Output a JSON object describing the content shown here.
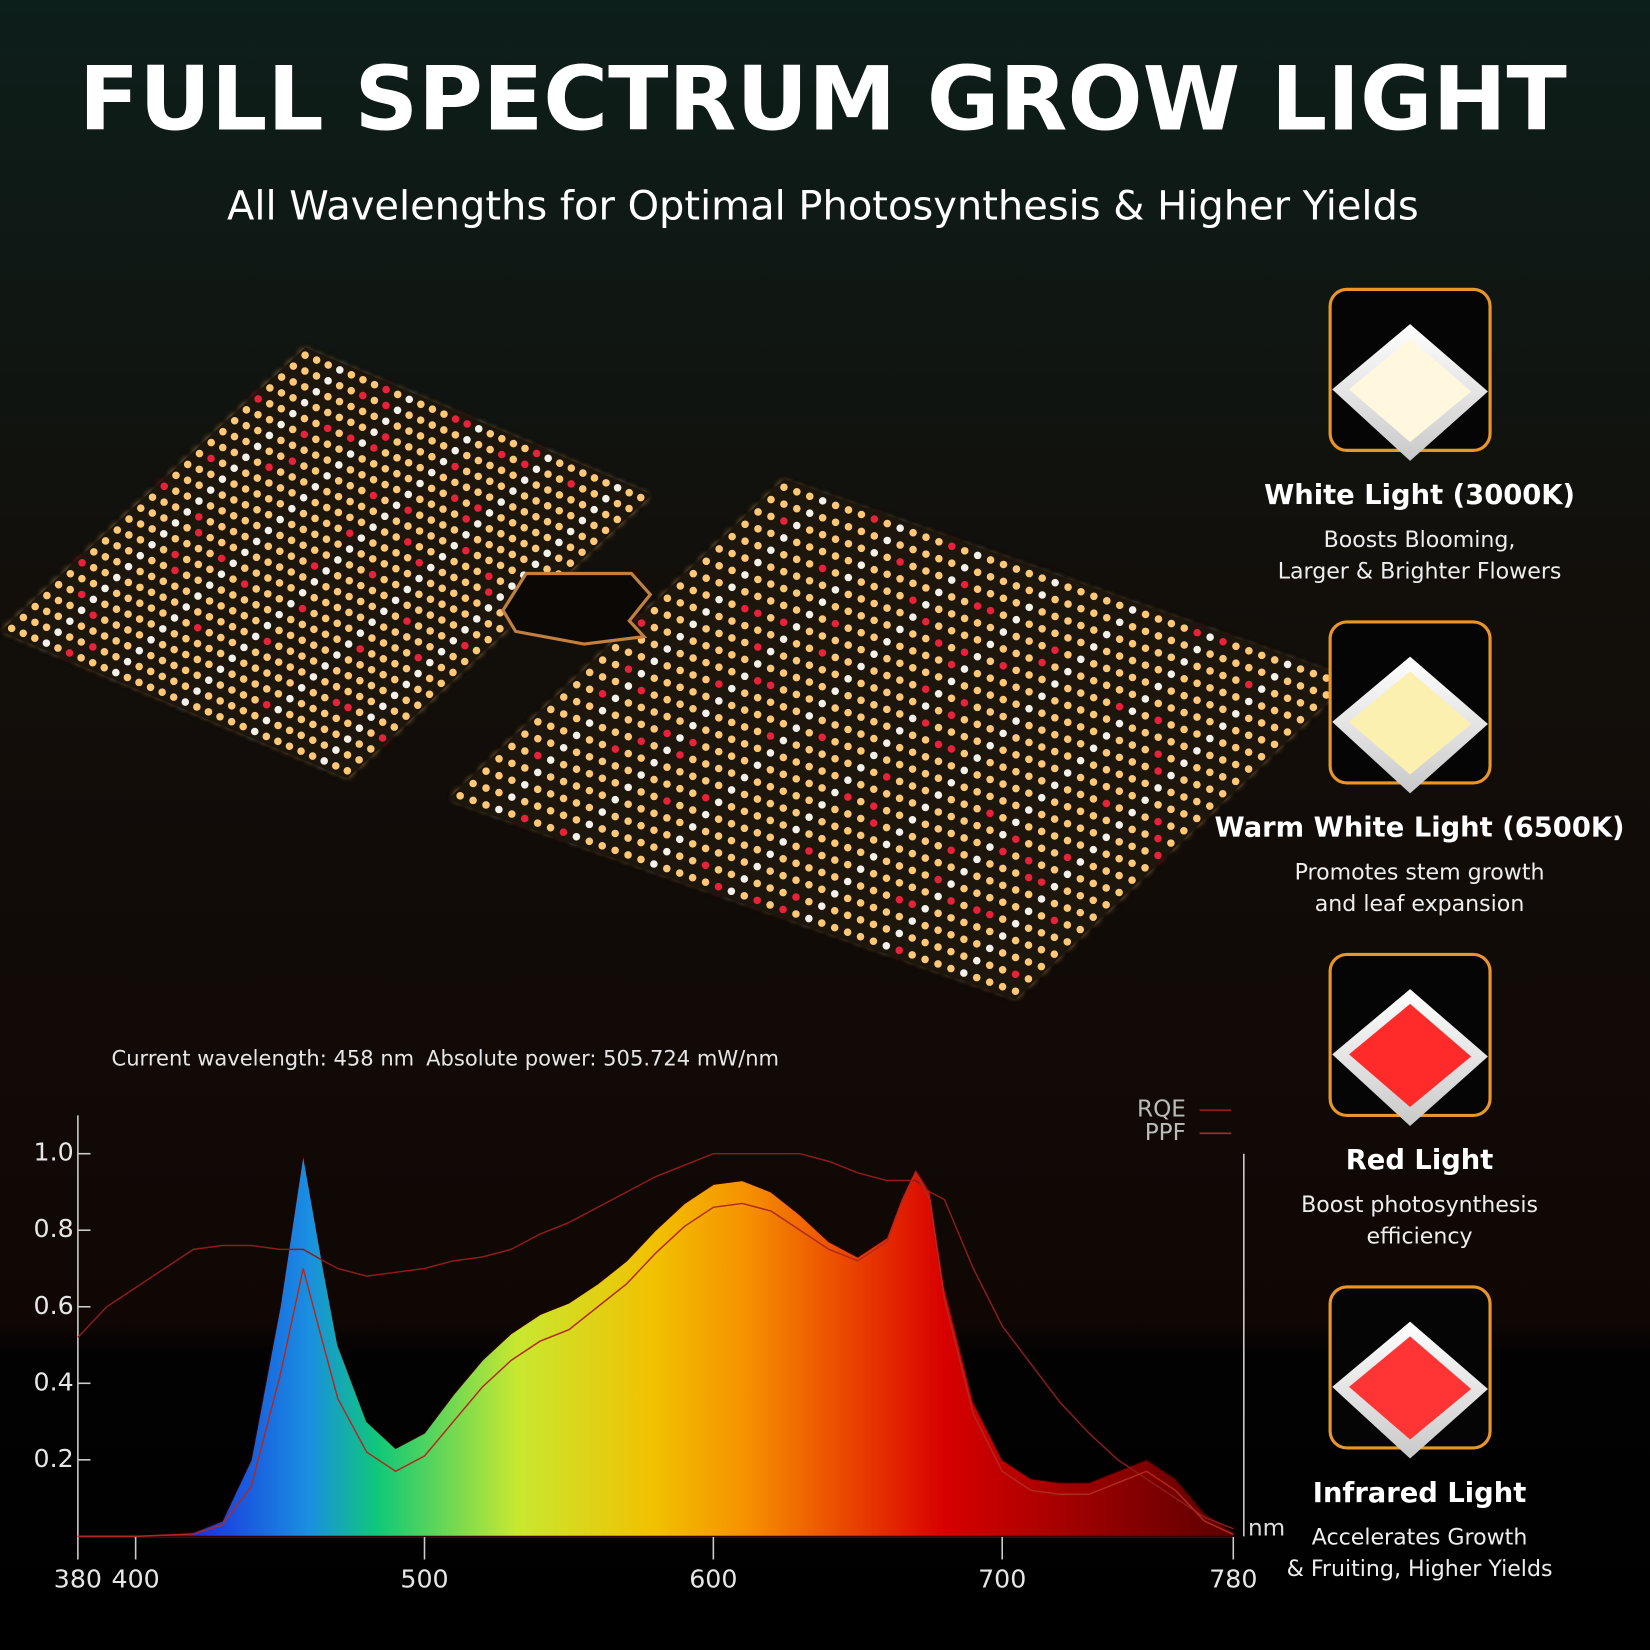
{
  "header": {
    "title": "FULL SPECTRUM GROW LIGHT",
    "subtitle": "All Wavelengths for Optimal Photosynthesis & Higher Yields"
  },
  "chart_data": {
    "type": "line",
    "annotations": [
      "Current wavelength: 458 nm",
      "Absolute power: 505.724 mW/nm"
    ],
    "x_label": "nm",
    "x": [
      380,
      390,
      400,
      410,
      420,
      430,
      440,
      450,
      458,
      465,
      470,
      480,
      490,
      500,
      510,
      520,
      530,
      540,
      550,
      560,
      570,
      580,
      590,
      600,
      610,
      620,
      630,
      640,
      650,
      660,
      665,
      670,
      675,
      680,
      690,
      700,
      710,
      720,
      730,
      740,
      750,
      760,
      770,
      780
    ],
    "series": [
      {
        "values": [
          0,
          0,
          0,
          0.005,
          0.01,
          0.04,
          0.2,
          0.6,
          1.0,
          0.7,
          0.5,
          0.3,
          0.23,
          0.27,
          0.37,
          0.46,
          0.53,
          0.58,
          0.61,
          0.66,
          0.72,
          0.8,
          0.87,
          0.92,
          0.93,
          0.9,
          0.84,
          0.77,
          0.73,
          0.78,
          0.88,
          0.96,
          0.9,
          0.65,
          0.35,
          0.2,
          0.15,
          0.14,
          0.14,
          0.17,
          0.2,
          0.15,
          0.06,
          0.01
        ]
      },
      {
        "name": "RQE",
        "color": "#8e1c1c",
        "values": [
          0.52,
          0.6,
          0.65,
          0.7,
          0.75,
          0.76,
          0.76,
          0.75,
          0.75,
          0.72,
          0.7,
          0.68,
          0.69,
          0.7,
          0.72,
          0.73,
          0.75,
          0.79,
          0.82,
          0.86,
          0.9,
          0.94,
          0.97,
          1.0,
          1.0,
          1.0,
          1.0,
          0.98,
          0.95,
          0.93,
          0.93,
          0.93,
          0.9,
          0.88,
          0.7,
          0.55,
          0.45,
          0.35,
          0.27,
          0.2,
          0.15,
          0.1,
          0.05,
          0.02
        ]
      },
      {
        "name": "PPF",
        "color": "#b02a20",
        "values": [
          0,
          0,
          0,
          0.003,
          0.006,
          0.03,
          0.13,
          0.42,
          0.7,
          0.5,
          0.36,
          0.22,
          0.17,
          0.21,
          0.3,
          0.39,
          0.46,
          0.51,
          0.54,
          0.6,
          0.66,
          0.74,
          0.81,
          0.86,
          0.87,
          0.85,
          0.8,
          0.75,
          0.72,
          0.77,
          0.87,
          0.95,
          0.88,
          0.62,
          0.32,
          0.17,
          0.12,
          0.11,
          0.11,
          0.14,
          0.17,
          0.12,
          0.04,
          0.005
        ]
      }
    ],
    "xlim": [
      380,
      780
    ],
    "xticks": [
      380,
      400,
      500,
      600,
      700,
      780
    ],
    "ylim": [
      0,
      1.1
    ],
    "yticks": [
      0.2,
      0.4,
      0.6,
      0.8,
      {
        "value": 1,
        "label": "1.0"
      }
    ]
  },
  "features": [
    {
      "title": "White Light (3000K)",
      "lines": [
        "Boosts Blooming,",
        "Larger & Brighter Flowers"
      ]
    },
    {
      "title": "Warm White Light (6500K)",
      "lines": [
        "Promotes stem growth",
        "and leaf expansion"
      ]
    },
    {
      "title": "Red Light",
      "lines": [
        "Boost photosynthesis",
        "efficiency"
      ]
    },
    {
      "title": "Infrared Light",
      "lines": [
        "Accelerates Growth",
        "& Fruiting, Higher Yields"
      ]
    }
  ]
}
